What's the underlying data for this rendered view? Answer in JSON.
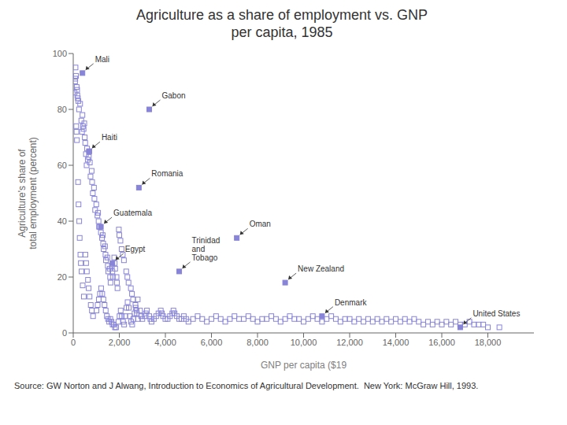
{
  "chart_data": {
    "type": "scatter",
    "title": "Agriculture as a share of employment vs. GNP\nper capita, 1985",
    "x_label": "GNP per capita ($19",
    "y_label": "Agriculture's share of\ntotal employment (percent)",
    "source": "Source: GW Norton and J Alwang, Introduction to Economics of Agricultural Development.  New York: McGraw Hill, 1993.",
    "xlim": [
      0,
      20000
    ],
    "ylim": [
      0,
      100
    ],
    "xticks": [
      0,
      {
        "value": 2000,
        "label": "2,000"
      },
      {
        "value": 4000,
        "label": "4,000"
      },
      {
        "value": 6000,
        "label": "6,000"
      },
      {
        "value": 8000,
        "label": "8,000"
      },
      {
        "value": 10000,
        "label": "10,000"
      },
      {
        "value": 12000,
        "label": "12,000"
      },
      {
        "value": 14000,
        "label": "14,000"
      },
      {
        "value": 16000,
        "label": "16,000"
      },
      {
        "value": 18000,
        "label": "18,000"
      }
    ],
    "yticks": [
      0,
      20,
      40,
      60,
      80,
      100
    ],
    "grid": false,
    "marker": "square",
    "color": "#8884d8",
    "x": [
      100,
      120,
      80,
      150,
      60,
      200,
      170,
      90,
      300,
      250,
      220,
      180,
      400,
      350,
      420,
      380,
      500,
      450,
      480,
      520,
      600,
      550,
      630,
      580,
      700,
      680,
      720,
      800,
      750,
      820,
      900,
      850,
      920,
      1000,
      950,
      1050,
      1100,
      1080,
      1120,
      1200,
      1150,
      1250,
      1300,
      1280,
      1320,
      1400,
      1380,
      1420,
      1500,
      1480,
      1520,
      1600,
      1580,
      1620,
      1700,
      1720,
      1680,
      1800,
      1820,
      1780,
      1900,
      1920,
      1880,
      2000,
      2050,
      1980,
      2100,
      2150,
      2200,
      2300,
      2350,
      2400,
      2500,
      2550,
      2600,
      2700,
      2750,
      2800,
      2900,
      2950,
      3000,
      3100,
      3150,
      3200,
      3300,
      3350,
      3400,
      3500,
      3600,
      3700,
      3800,
      3850,
      3900,
      4000,
      4100,
      4200,
      4300,
      4350,
      4400,
      4500,
      4600,
      4700,
      4800,
      4900,
      5000,
      5200,
      5400,
      5600,
      5800,
      6000,
      6200,
      6400,
      6600,
      6800,
      7000,
      7200,
      7400,
      7600,
      7800,
      8000,
      8200,
      8400,
      8600,
      8800,
      9000,
      9200,
      9400,
      9600,
      9800,
      10000,
      10200,
      10400,
      10600,
      10800,
      11000,
      11200,
      11400,
      11600,
      11800,
      12000,
      12200,
      12400,
      12600,
      12800,
      13000,
      13200,
      13400,
      13600,
      13800,
      14000,
      14200,
      14400,
      14600,
      14800,
      15000,
      15200,
      15400,
      15600,
      15800,
      16000,
      16200,
      16400,
      16600,
      16800,
      17000,
      17200,
      17400,
      17600,
      17800,
      18000,
      18500,
      130,
      140,
      160,
      210,
      230,
      260,
      280,
      310,
      330,
      360,
      410,
      460,
      530,
      560,
      590,
      640,
      670,
      710,
      760,
      810,
      860,
      1010,
      1060,
      1110,
      1160,
      1210,
      1260,
      1310,
      1360,
      1410,
      1460,
      1510,
      1560,
      1610,
      1660,
      1710,
      1760,
      1810,
      1860,
      1960,
      2010,
      2060,
      2110,
      2160,
      2210,
      2260,
      2310,
      2360,
      2410,
      2460,
      2510,
      2560,
      2610,
      2660,
      2710,
      2760,
      2810
    ],
    "values": [
      95,
      92,
      90,
      88,
      86,
      84,
      87,
      91,
      82,
      80,
      83,
      85,
      78,
      76,
      74,
      72,
      70,
      73,
      75,
      68,
      66,
      64,
      62,
      60,
      65,
      63,
      61,
      58,
      56,
      54,
      52,
      50,
      48,
      46,
      44,
      42,
      40,
      43,
      38,
      36,
      38,
      34,
      32,
      35,
      30,
      28,
      31,
      26,
      24,
      27,
      22,
      20,
      23,
      18,
      22,
      20,
      24,
      25,
      23,
      27,
      18,
      16,
      20,
      35,
      33,
      37,
      30,
      28,
      26,
      22,
      20,
      18,
      16,
      14,
      12,
      10,
      8,
      12,
      8,
      6,
      5,
      6,
      7,
      8,
      6,
      5,
      4,
      5,
      6,
      7,
      8,
      7,
      6,
      5,
      5,
      6,
      7,
      8,
      7,
      6,
      5,
      5,
      6,
      5,
      4,
      5,
      6,
      5,
      4,
      5,
      6,
      5,
      4,
      5,
      6,
      5,
      5,
      6,
      5,
      4,
      5,
      5,
      6,
      5,
      4,
      5,
      6,
      5,
      5,
      4,
      5,
      6,
      5,
      4,
      5,
      6,
      5,
      4,
      5,
      5,
      4,
      5,
      4,
      5,
      4,
      5,
      4,
      5,
      4,
      5,
      4,
      5,
      4,
      5,
      4,
      3,
      4,
      3,
      4,
      3,
      4,
      3,
      4,
      3,
      3,
      4,
      3,
      3,
      3,
      2,
      2,
      74,
      72,
      69,
      54,
      46,
      40,
      34,
      28,
      25,
      22,
      17,
      13,
      28,
      25,
      22,
      19,
      16,
      13,
      10,
      8,
      6,
      8,
      10,
      12,
      14,
      16,
      14,
      12,
      10,
      8,
      6,
      5,
      4,
      5,
      4,
      3,
      3,
      2,
      2,
      4,
      6,
      8,
      6,
      4,
      3,
      6,
      9,
      11,
      9,
      6,
      4,
      3,
      5,
      7,
      9,
      7,
      5
    ],
    "annotations": [
      {
        "x": 400,
        "y": 93,
        "text": "Mali"
      },
      {
        "x": 3300,
        "y": 80,
        "text": "Gabon"
      },
      {
        "x": 680,
        "y": 65,
        "text": "Haiti"
      },
      {
        "x": 2850,
        "y": 52,
        "text": "Romania"
      },
      {
        "x": 1200,
        "y": 38,
        "text": "Guatemala"
      },
      {
        "x": 7100,
        "y": 34,
        "text": "Oman"
      },
      {
        "x": 4600,
        "y": 22,
        "text": "Trinidad\nand\nTobago"
      },
      {
        "x": 9200,
        "y": 18,
        "text": "New Zealand"
      },
      {
        "x": 1700,
        "y": 25,
        "text": "Egypt"
      },
      {
        "x": 10800,
        "y": 6,
        "text": "Denmark"
      },
      {
        "x": 16800,
        "y": 2,
        "text": "United States"
      }
    ]
  }
}
